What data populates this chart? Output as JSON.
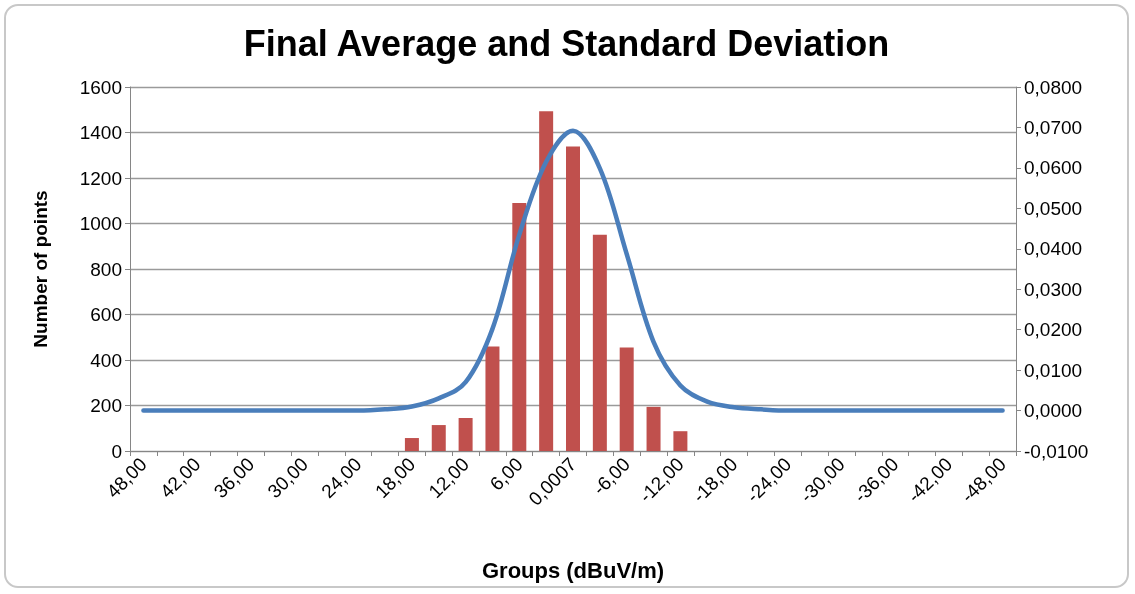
{
  "chart_data": {
    "type": "bar",
    "title": "Final Average and Standard Deviation",
    "xlabel": "Groups (dBuV/m)",
    "ylabel": "Number of points",
    "categories": [
      "48,00",
      null,
      "42,00",
      null,
      "36,00",
      null,
      "30,00",
      null,
      "24,00",
      null,
      "18,00",
      null,
      "12,00",
      null,
      "6,00",
      null,
      "0,0007",
      null,
      "-6,00",
      null,
      "-12,00",
      null,
      "-18,00",
      null,
      "-24,00",
      null,
      "-30,00",
      null,
      "-36,00",
      null,
      "-42,00",
      null,
      "-48,00"
    ],
    "series": [
      {
        "color": "#c0504d",
        "values": [
          null,
          null,
          null,
          null,
          null,
          null,
          null,
          null,
          null,
          null,
          57,
          114,
          145,
          459,
          1090,
          1493,
          1339,
          951,
          455,
          194,
          87,
          null,
          null,
          null,
          null,
          null,
          null,
          null,
          null,
          null,
          null,
          null,
          null
        ]
      },
      {
        "type": "line",
        "axis": "y2",
        "color": "#4a7ebb",
        "values": [
          0,
          0,
          0,
          0,
          0,
          0,
          0,
          0,
          0,
          0.0003,
          0.001,
          0.003,
          0.007,
          0.0202,
          0.0435,
          0.0615,
          0.0692,
          0.0599,
          0.0387,
          0.017,
          0.0062,
          0.0022,
          0.0008,
          0.0003,
          0,
          0,
          0,
          0,
          0,
          0,
          0,
          0,
          0
        ]
      }
    ],
    "ylim": [
      0,
      1600
    ],
    "yticks": [
      0,
      200,
      400,
      600,
      800,
      1000,
      1200,
      1400,
      1600
    ],
    "y2lim": [
      -0.01,
      0.08
    ],
    "y2ticks": [
      {
        "value": -0.01,
        "label": "-0,0100"
      },
      {
        "value": 0,
        "label": "0,0000"
      },
      {
        "value": 0.01,
        "label": "0,0100"
      },
      {
        "value": 0.02,
        "label": "0,0200"
      },
      {
        "value": 0.03,
        "label": "0,0300"
      },
      {
        "value": 0.04,
        "label": "0,0400"
      },
      {
        "value": 0.05,
        "label": "0,0500"
      },
      {
        "value": 0.06,
        "label": "0,0600"
      },
      {
        "value": 0.07,
        "label": "0,0700"
      },
      {
        "value": 0.08,
        "label": "0,0800"
      }
    ],
    "grid": "y",
    "marker": "none",
    "line_style": "solid"
  }
}
